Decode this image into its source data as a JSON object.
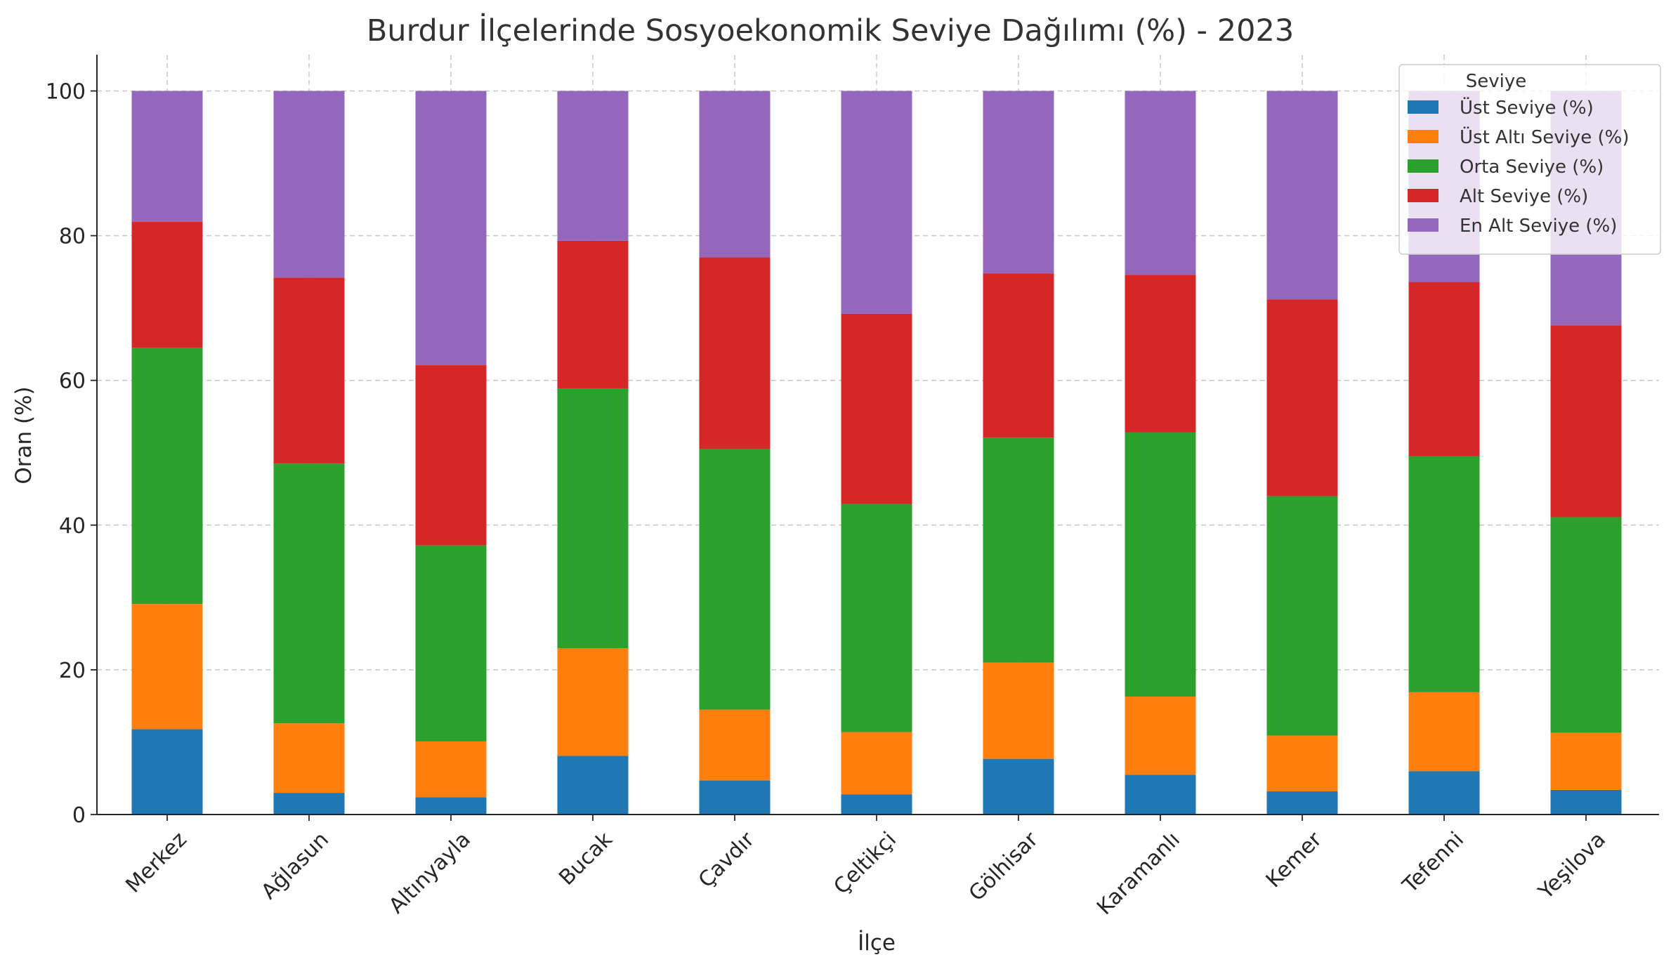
{
  "chart_data": {
    "type": "bar",
    "stacked": true,
    "title": "Burdur İlçelerinde Sosyoekonomik Seviye Dağılımı (%) - 2023",
    "xlabel": "İlçe",
    "ylabel": "Oran (%)",
    "ylim": [
      0,
      105
    ],
    "yticks": [
      0,
      20,
      40,
      60,
      80,
      100
    ],
    "grid": true,
    "legend": {
      "title": "Seviye",
      "position": "top-right"
    },
    "categories": [
      "Merkez",
      "Ağlasun",
      "Altınyayla",
      "Bucak",
      "Çavdır",
      "Çeltikçi",
      "Gölhisar",
      "Karamanlı",
      "Kemer",
      "Tefenni",
      "Yeşilova"
    ],
    "series": [
      {
        "name": "Üst Seviye (%)",
        "color": "#1f77b4",
        "values": [
          11.8,
          3.0,
          2.4,
          8.1,
          4.7,
          2.8,
          7.7,
          5.5,
          3.2,
          6.0,
          3.4
        ]
      },
      {
        "name": "Üst Altı Seviye (%)",
        "color": "#ff7f0e",
        "values": [
          17.3,
          9.6,
          7.7,
          14.9,
          9.8,
          8.6,
          13.3,
          10.8,
          7.7,
          10.9,
          7.9
        ]
      },
      {
        "name": "Orta Seviye (%)",
        "color": "#2ca02c",
        "values": [
          35.4,
          35.9,
          27.1,
          35.9,
          36.0,
          31.5,
          31.1,
          36.5,
          33.1,
          32.6,
          29.8
        ]
      },
      {
        "name": "Alt Seviye (%)",
        "color": "#d62728",
        "values": [
          17.4,
          25.7,
          24.9,
          20.4,
          26.5,
          26.3,
          22.7,
          21.8,
          27.2,
          24.1,
          26.5
        ]
      },
      {
        "name": "En Alt Seviye (%)",
        "color": "#9467bd",
        "values": [
          18.1,
          25.8,
          37.9,
          20.7,
          23.0,
          30.8,
          25.2,
          25.4,
          28.8,
          26.4,
          32.4
        ]
      }
    ]
  }
}
